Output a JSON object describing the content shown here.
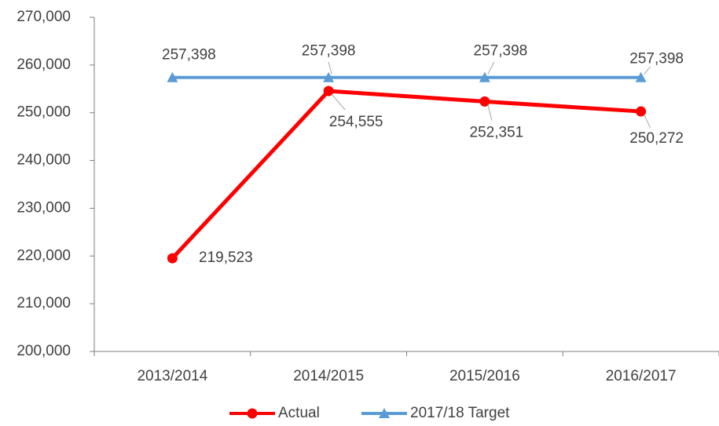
{
  "chart_data": {
    "type": "line",
    "categories": [
      "2013/2014",
      "2014/2015",
      "2015/2016",
      "2016/2017"
    ],
    "series": [
      {
        "name": "Actual",
        "color": "#ff0000",
        "marker": "circle",
        "values": [
          219523,
          254555,
          252351,
          250272
        ],
        "value_labels": [
          "219,523",
          "254,555",
          "252,351",
          "250,272"
        ]
      },
      {
        "name": "2017/18 Target",
        "color": "#5b9bd5",
        "marker": "triangle",
        "values": [
          257398,
          257398,
          257398,
          257398
        ],
        "value_labels": [
          "257,398",
          "257,398",
          "257,398",
          "257,398"
        ]
      }
    ],
    "ylim": [
      200000,
      270000
    ],
    "yticks": [
      {
        "value": 200000,
        "label": "200,000"
      },
      {
        "value": 210000,
        "label": "210,000"
      },
      {
        "value": 220000,
        "label": "220,000"
      },
      {
        "value": 230000,
        "label": "230,000"
      },
      {
        "value": 240000,
        "label": "240,000"
      },
      {
        "value": 250000,
        "label": "250,000"
      },
      {
        "value": 260000,
        "label": "260,000"
      },
      {
        "value": 270000,
        "label": "270,000"
      }
    ],
    "grid": false,
    "legend": "bottom"
  }
}
